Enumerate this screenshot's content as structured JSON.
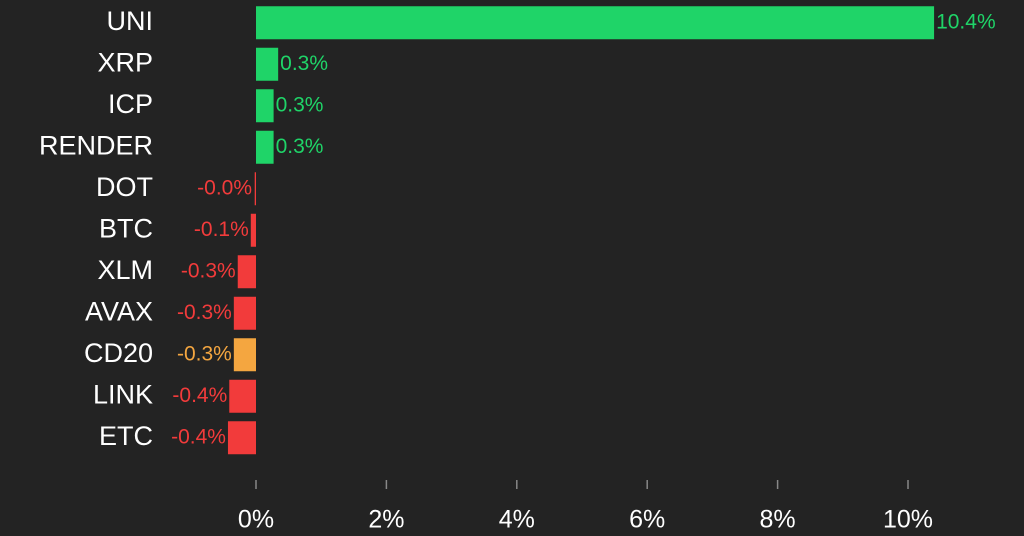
{
  "chart_data": {
    "type": "hbar",
    "categories": [
      "UNI",
      "XRP",
      "ICP",
      "RENDER",
      "DOT",
      "BTC",
      "XLM",
      "AVAX",
      "CD20",
      "LINK",
      "ETC"
    ],
    "values": [
      10.4,
      0.34,
      0.27,
      0.27,
      -0.02,
      -0.08,
      -0.28,
      -0.34,
      -0.34,
      -0.41,
      -0.43
    ],
    "value_labels": [
      "10.4%",
      "0.3%",
      "0.3%",
      "0.3%",
      "-0.0%",
      "-0.1%",
      "-0.3%",
      "-0.3%",
      "-0.3%",
      "-0.4%",
      "-0.4%"
    ],
    "colors": [
      "#1fd468",
      "#1fd468",
      "#1fd468",
      "#1fd468",
      "#f23b3b",
      "#f23b3b",
      "#f23b3b",
      "#f23b3b",
      "#f4a640",
      "#f23b3b",
      "#f23b3b"
    ],
    "xlim": [
      -0.5,
      11
    ],
    "xticks": [
      {
        "value": 0,
        "label": "0%"
      },
      {
        "value": 2,
        "label": "2%"
      },
      {
        "value": 4,
        "label": "4%"
      },
      {
        "value": 6,
        "label": "6%"
      },
      {
        "value": 8,
        "label": "8%"
      },
      {
        "value": 10,
        "label": "10%"
      }
    ]
  }
}
